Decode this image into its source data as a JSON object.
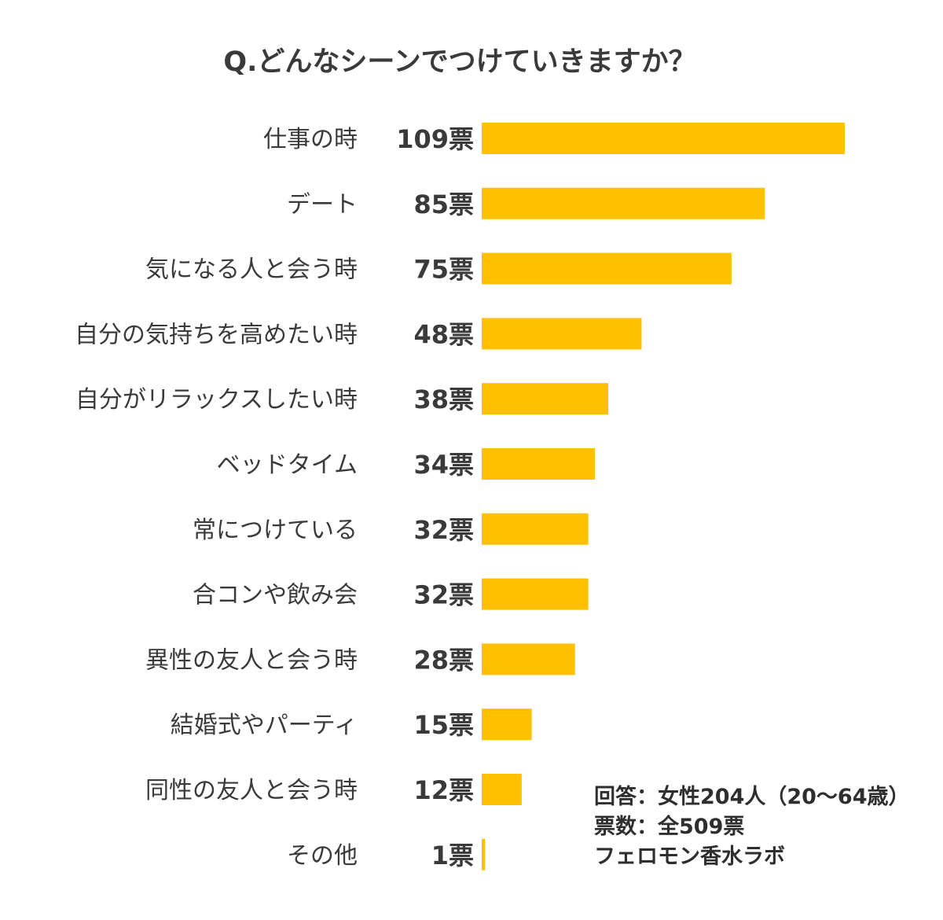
{
  "chart_data": {
    "type": "bar",
    "orientation": "horizontal",
    "title": "Q.どんなシーンでつけていきますか？",
    "categories": [
      "仕事の時",
      "デート",
      "気になる人と会う時",
      "自分の気持ちを高めたい時",
      "自分がリラックスしたい時",
      "ベッドタイム",
      "常につけている",
      "合コンや飲み会",
      "異性の友人と会う時",
      "結婚式やパーティ",
      "同性の友人と会う時",
      "その他"
    ],
    "values": [
      109,
      85,
      75,
      48,
      38,
      34,
      32,
      32,
      28,
      15,
      12,
      1
    ],
    "value_suffix": "票",
    "xlim": [
      0,
      109
    ],
    "grid": false,
    "bar_color": "#FFC000",
    "text_color": "#3a3a3a"
  },
  "notes": {
    "respondents": "回答：女性204人（20〜64歳）",
    "total": "票数：全509票",
    "source": "フェロモン香水ラボ"
  }
}
